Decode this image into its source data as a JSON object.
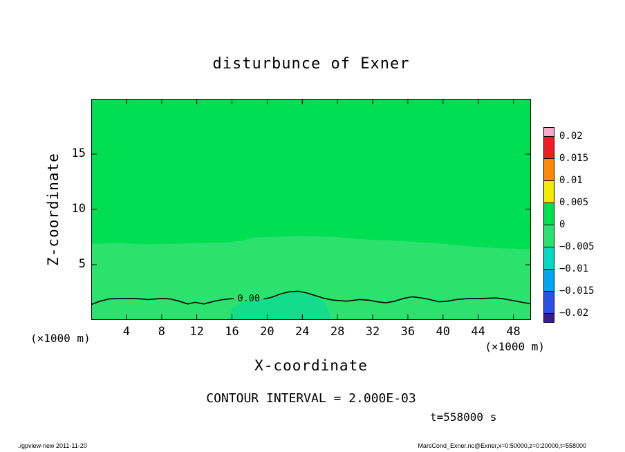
{
  "page": {
    "background": "#ffffff"
  },
  "title": "disturbunce of Exner",
  "annotations": {
    "contour_interval": "CONTOUR INTERVAL = 2.000E-03",
    "time": "t=558000 s",
    "x_unit_left": "(×1000 m)",
    "x_unit_right": "(×1000 m)"
  },
  "footer": {
    "left": "./gpview-new  2011-11-20",
    "right": "MarsCond_Exner.nc@Exner,x=0:50000,z=0:20000,t=558000"
  },
  "chart_data": {
    "type": "filled-contour",
    "title": "disturbunce of Exner",
    "xlabel": "X-coordinate",
    "ylabel": "Z-coordinate",
    "xlim": [
      0,
      50
    ],
    "ylim": [
      0,
      20
    ],
    "x_ticks": [
      4,
      8,
      12,
      16,
      20,
      24,
      28,
      32,
      36,
      40,
      44,
      48
    ],
    "y_ticks": [
      5,
      10,
      15
    ],
    "x_unit": "×1000 m",
    "contour_interval": 0.002,
    "time_seconds": 558000,
    "zero_contour_label": "0.00",
    "contour_label_pos": [
      17.9,
      2.0
    ],
    "contour_label_gap": [
      16.2,
      19.6
    ],
    "fills": {
      "upper_color": "#00de52",
      "band_color": "#2ce26e",
      "patch_color": "#12dd8d"
    },
    "band_boundary": [
      [
        0,
        6.9
      ],
      [
        3,
        6.95
      ],
      [
        6,
        6.85
      ],
      [
        9,
        6.9
      ],
      [
        12,
        6.95
      ],
      [
        15,
        7.0
      ],
      [
        17,
        7.15
      ],
      [
        18.5,
        7.45
      ],
      [
        20,
        7.5
      ],
      [
        22,
        7.55
      ],
      [
        24,
        7.6
      ],
      [
        26,
        7.55
      ],
      [
        28,
        7.5
      ],
      [
        30,
        7.35
      ],
      [
        32,
        7.25
      ],
      [
        34,
        7.2
      ],
      [
        36,
        7.1
      ],
      [
        38,
        7.0
      ],
      [
        40,
        6.9
      ],
      [
        42,
        6.75
      ],
      [
        44,
        6.6
      ],
      [
        46,
        6.5
      ],
      [
        48,
        6.45
      ],
      [
        50,
        6.4
      ]
    ],
    "zero_contour": [
      [
        0,
        1.4
      ],
      [
        1,
        1.7
      ],
      [
        2,
        1.9
      ],
      [
        3.5,
        1.95
      ],
      [
        5,
        1.95
      ],
      [
        6.5,
        1.85
      ],
      [
        8,
        1.95
      ],
      [
        9,
        1.9
      ],
      [
        10,
        1.7
      ],
      [
        11,
        1.45
      ],
      [
        11.8,
        1.6
      ],
      [
        12.8,
        1.45
      ],
      [
        14,
        1.7
      ],
      [
        15,
        1.85
      ],
      [
        16.2,
        1.95
      ],
      [
        19.6,
        1.9
      ],
      [
        20.5,
        2.05
      ],
      [
        21.5,
        2.35
      ],
      [
        22.5,
        2.55
      ],
      [
        23.5,
        2.6
      ],
      [
        24.5,
        2.45
      ],
      [
        25.5,
        2.2
      ],
      [
        26.5,
        1.95
      ],
      [
        27.5,
        1.8
      ],
      [
        29,
        1.7
      ],
      [
        30.5,
        1.85
      ],
      [
        31.5,
        1.8
      ],
      [
        32.5,
        1.65
      ],
      [
        33.5,
        1.55
      ],
      [
        34.5,
        1.7
      ],
      [
        35.5,
        1.95
      ],
      [
        36.5,
        2.1
      ],
      [
        37.5,
        2.0
      ],
      [
        38.5,
        1.85
      ],
      [
        39.5,
        1.65
      ],
      [
        40.5,
        1.7
      ],
      [
        41.5,
        1.85
      ],
      [
        43,
        1.95
      ],
      [
        44.5,
        1.95
      ],
      [
        46,
        2.0
      ],
      [
        47,
        1.9
      ],
      [
        48,
        1.75
      ],
      [
        49,
        1.6
      ],
      [
        50,
        1.45
      ]
    ],
    "teal_patch": [
      [
        15.5,
        0
      ],
      [
        16,
        1.0
      ],
      [
        17,
        1.55
      ],
      [
        18.5,
        1.8
      ],
      [
        20,
        1.95
      ],
      [
        21.5,
        2.25
      ],
      [
        22.5,
        2.45
      ],
      [
        23.5,
        2.5
      ],
      [
        24.5,
        2.35
      ],
      [
        25.5,
        2.1
      ],
      [
        26.5,
        1.6
      ],
      [
        27,
        0.8
      ],
      [
        27.3,
        0
      ]
    ],
    "colorbar": {
      "labels": [
        "0.02",
        "0.015",
        "0.01",
        "0.005",
        "0",
        "−0.005",
        "−0.01",
        "−0.015",
        "−0.02"
      ],
      "cells": [
        "#f9a8c9",
        "#ee1c25",
        "#ff8a00",
        "#f2ea00",
        "#00de52",
        "#2ce26e",
        "#00d9c3",
        "#00a6f2",
        "#2b50e6",
        "#3a1a96"
      ]
    }
  }
}
